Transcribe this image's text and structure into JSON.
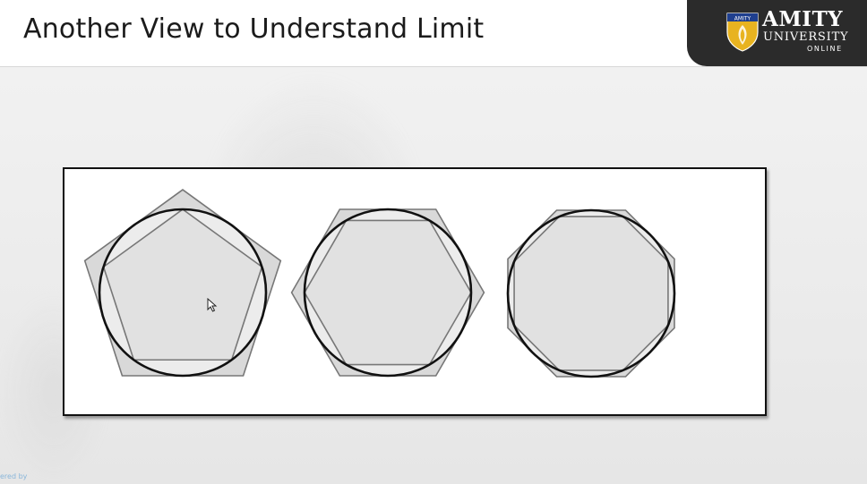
{
  "slide": {
    "title": "Another View to Understand Limit"
  },
  "logo": {
    "name": "AMITY",
    "subtitle": "UNIVERSITY",
    "tagline": "ONLINE",
    "crest_text": "AMITY"
  },
  "footer": {
    "powered_text": "ered by"
  },
  "diagram": {
    "figures": [
      {
        "polygon": "pentagon",
        "sides": 5
      },
      {
        "polygon": "hexagon",
        "sides": 6
      },
      {
        "polygon": "octagon",
        "sides": 8
      }
    ],
    "colors": {
      "circle_stroke": "#111111",
      "polygon_stroke": "#777777",
      "outer_fill": "#d9d9d9",
      "inner_fill": "#ececec",
      "title_bar": "#ffffff",
      "logo_bg": "#2b2b2b",
      "crest_gold": "#e8b320"
    }
  }
}
